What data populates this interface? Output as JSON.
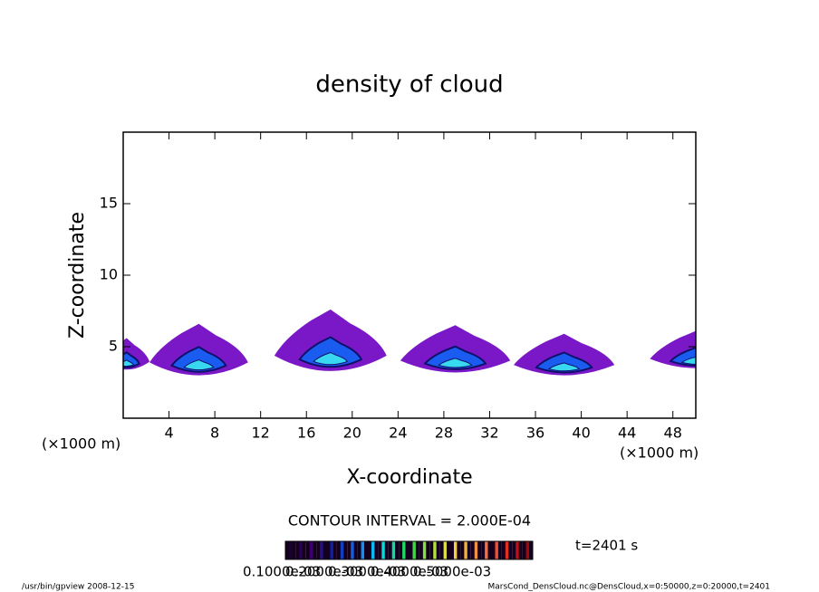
{
  "chart_data": {
    "type": "contour",
    "title": "density of cloud",
    "x_label": "X-coordinate",
    "y_label": "Z-coordinate",
    "x_units": "(×1000 m)",
    "y_units": "(×1000 m)",
    "xlim": [
      0,
      50
    ],
    "xticks": [
      4,
      8,
      12,
      16,
      20,
      24,
      28,
      32,
      36,
      40,
      44,
      48
    ],
    "ylim": [
      0,
      20
    ],
    "yticks": [
      5,
      10,
      15
    ],
    "cells": [
      {
        "x": 0.3,
        "halfwidth": 2.0,
        "base": 3.4,
        "top": 5.6
      },
      {
        "x": 6.6,
        "halfwidth": 4.3,
        "base": 3.0,
        "top": 6.6
      },
      {
        "x": 18.1,
        "halfwidth": 4.9,
        "base": 3.3,
        "top": 7.6
      },
      {
        "x": 29.0,
        "halfwidth": 4.8,
        "base": 3.2,
        "top": 6.5
      },
      {
        "x": 38.5,
        "halfwidth": 4.4,
        "base": 3.0,
        "top": 5.9
      },
      {
        "x": 50.0,
        "halfwidth": 4.0,
        "base": 3.5,
        "top": 6.1
      }
    ],
    "fill_color": "#7a18c8",
    "core_color": "#1a5cf0",
    "peak_color": "#38d8f0",
    "edge_color": "#10106a",
    "contour_interval": "CONTOUR INTERVAL = 2.000E-04",
    "time_label": "t=2401 s",
    "colorbar": {
      "colors": [
        "#1a0030",
        "#2a0050",
        "#3a0070",
        "#22108a",
        "#1020a0",
        "#1040c0",
        "#1060e0",
        "#1090f0",
        "#10b8f0",
        "#10d8d8",
        "#10d8a0",
        "#20d860",
        "#40d840",
        "#80e040",
        "#b0e040",
        "#d8e040",
        "#f0d040",
        "#f0b040",
        "#f09040",
        "#f07040",
        "#f05030",
        "#e03020",
        "#c01010",
        "#a00808"
      ],
      "ticks": [
        {
          "value": 0.0001,
          "label": "0.1000e-03"
        },
        {
          "value": 0.0002,
          "label": "0.2000e-03"
        },
        {
          "value": 0.0003,
          "label": "0.3000e-03"
        },
        {
          "value": 0.0004,
          "label": "0.4000e-03"
        },
        {
          "value": 0.0005,
          "label": "0.5000e-03"
        }
      ]
    },
    "footer_left": "/usr/bin/gpview  2008-12-15",
    "footer_right": "MarsCond_DensCloud.nc@DensCloud,x=0:50000,z=0:20000,t=2401"
  }
}
